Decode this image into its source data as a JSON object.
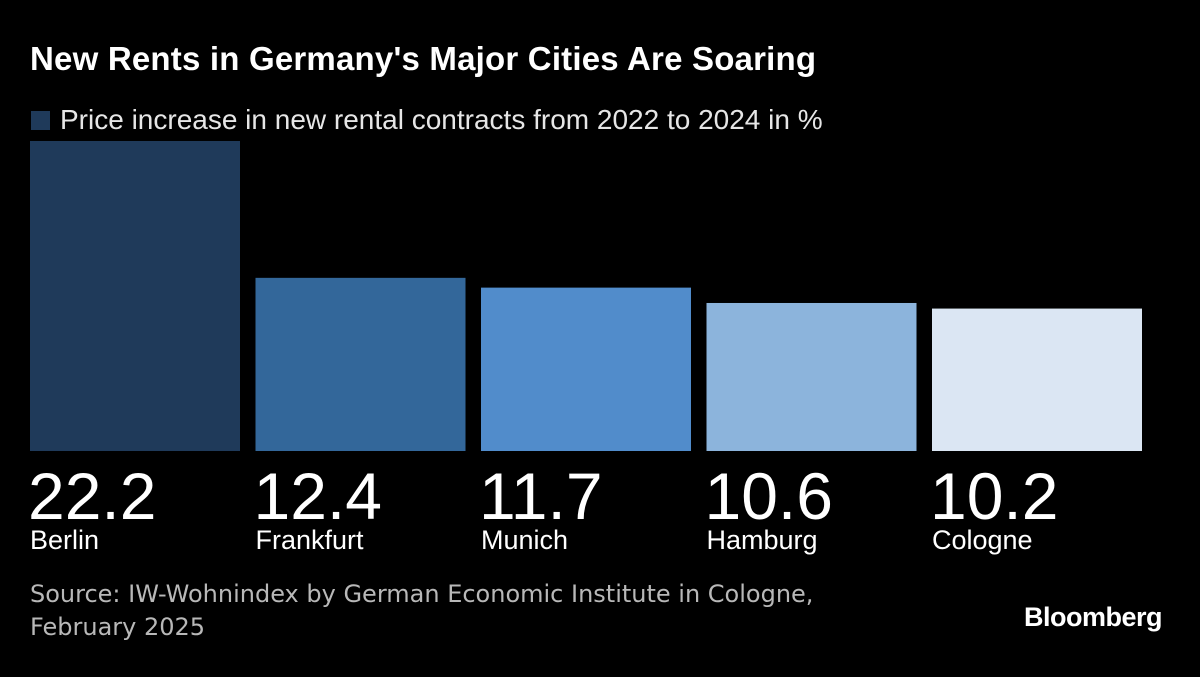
{
  "title": "New Rents in Germany's Major Cities Are Soaring",
  "legend": {
    "label": "Price increase in new rental contracts from 2022 to 2024 in %",
    "color": "#1f3a5a"
  },
  "source": {
    "line1": "Source: IW-Wohnindex by German Economic Institute in Cologne,",
    "line2": "February 2025"
  },
  "brand": "Bloomberg",
  "chart_data": {
    "type": "bar",
    "categories": [
      "Berlin",
      "Frankfurt",
      "Munich",
      "Hamburg",
      "Cologne"
    ],
    "values": [
      22.2,
      12.4,
      11.7,
      10.6,
      10.2
    ],
    "value_labels": [
      "22.2",
      "12.4",
      "11.7",
      "10.6",
      "10.2"
    ],
    "colors": [
      "#1f3a5a",
      "#33679a",
      "#518ccb",
      "#8cb4dc",
      "#dbe6f3"
    ],
    "series": [
      {
        "name": "Price increase in new rental contracts from 2022 to 2024 in %",
        "values": [
          22.2,
          12.4,
          11.7,
          10.6,
          10.2
        ]
      }
    ],
    "title": "New Rents in Germany's Major Cities Are Soaring",
    "xlabel": "",
    "ylabel": "",
    "ylim": [
      0,
      22.2
    ],
    "grid": false,
    "legend_position": "top-left"
  }
}
